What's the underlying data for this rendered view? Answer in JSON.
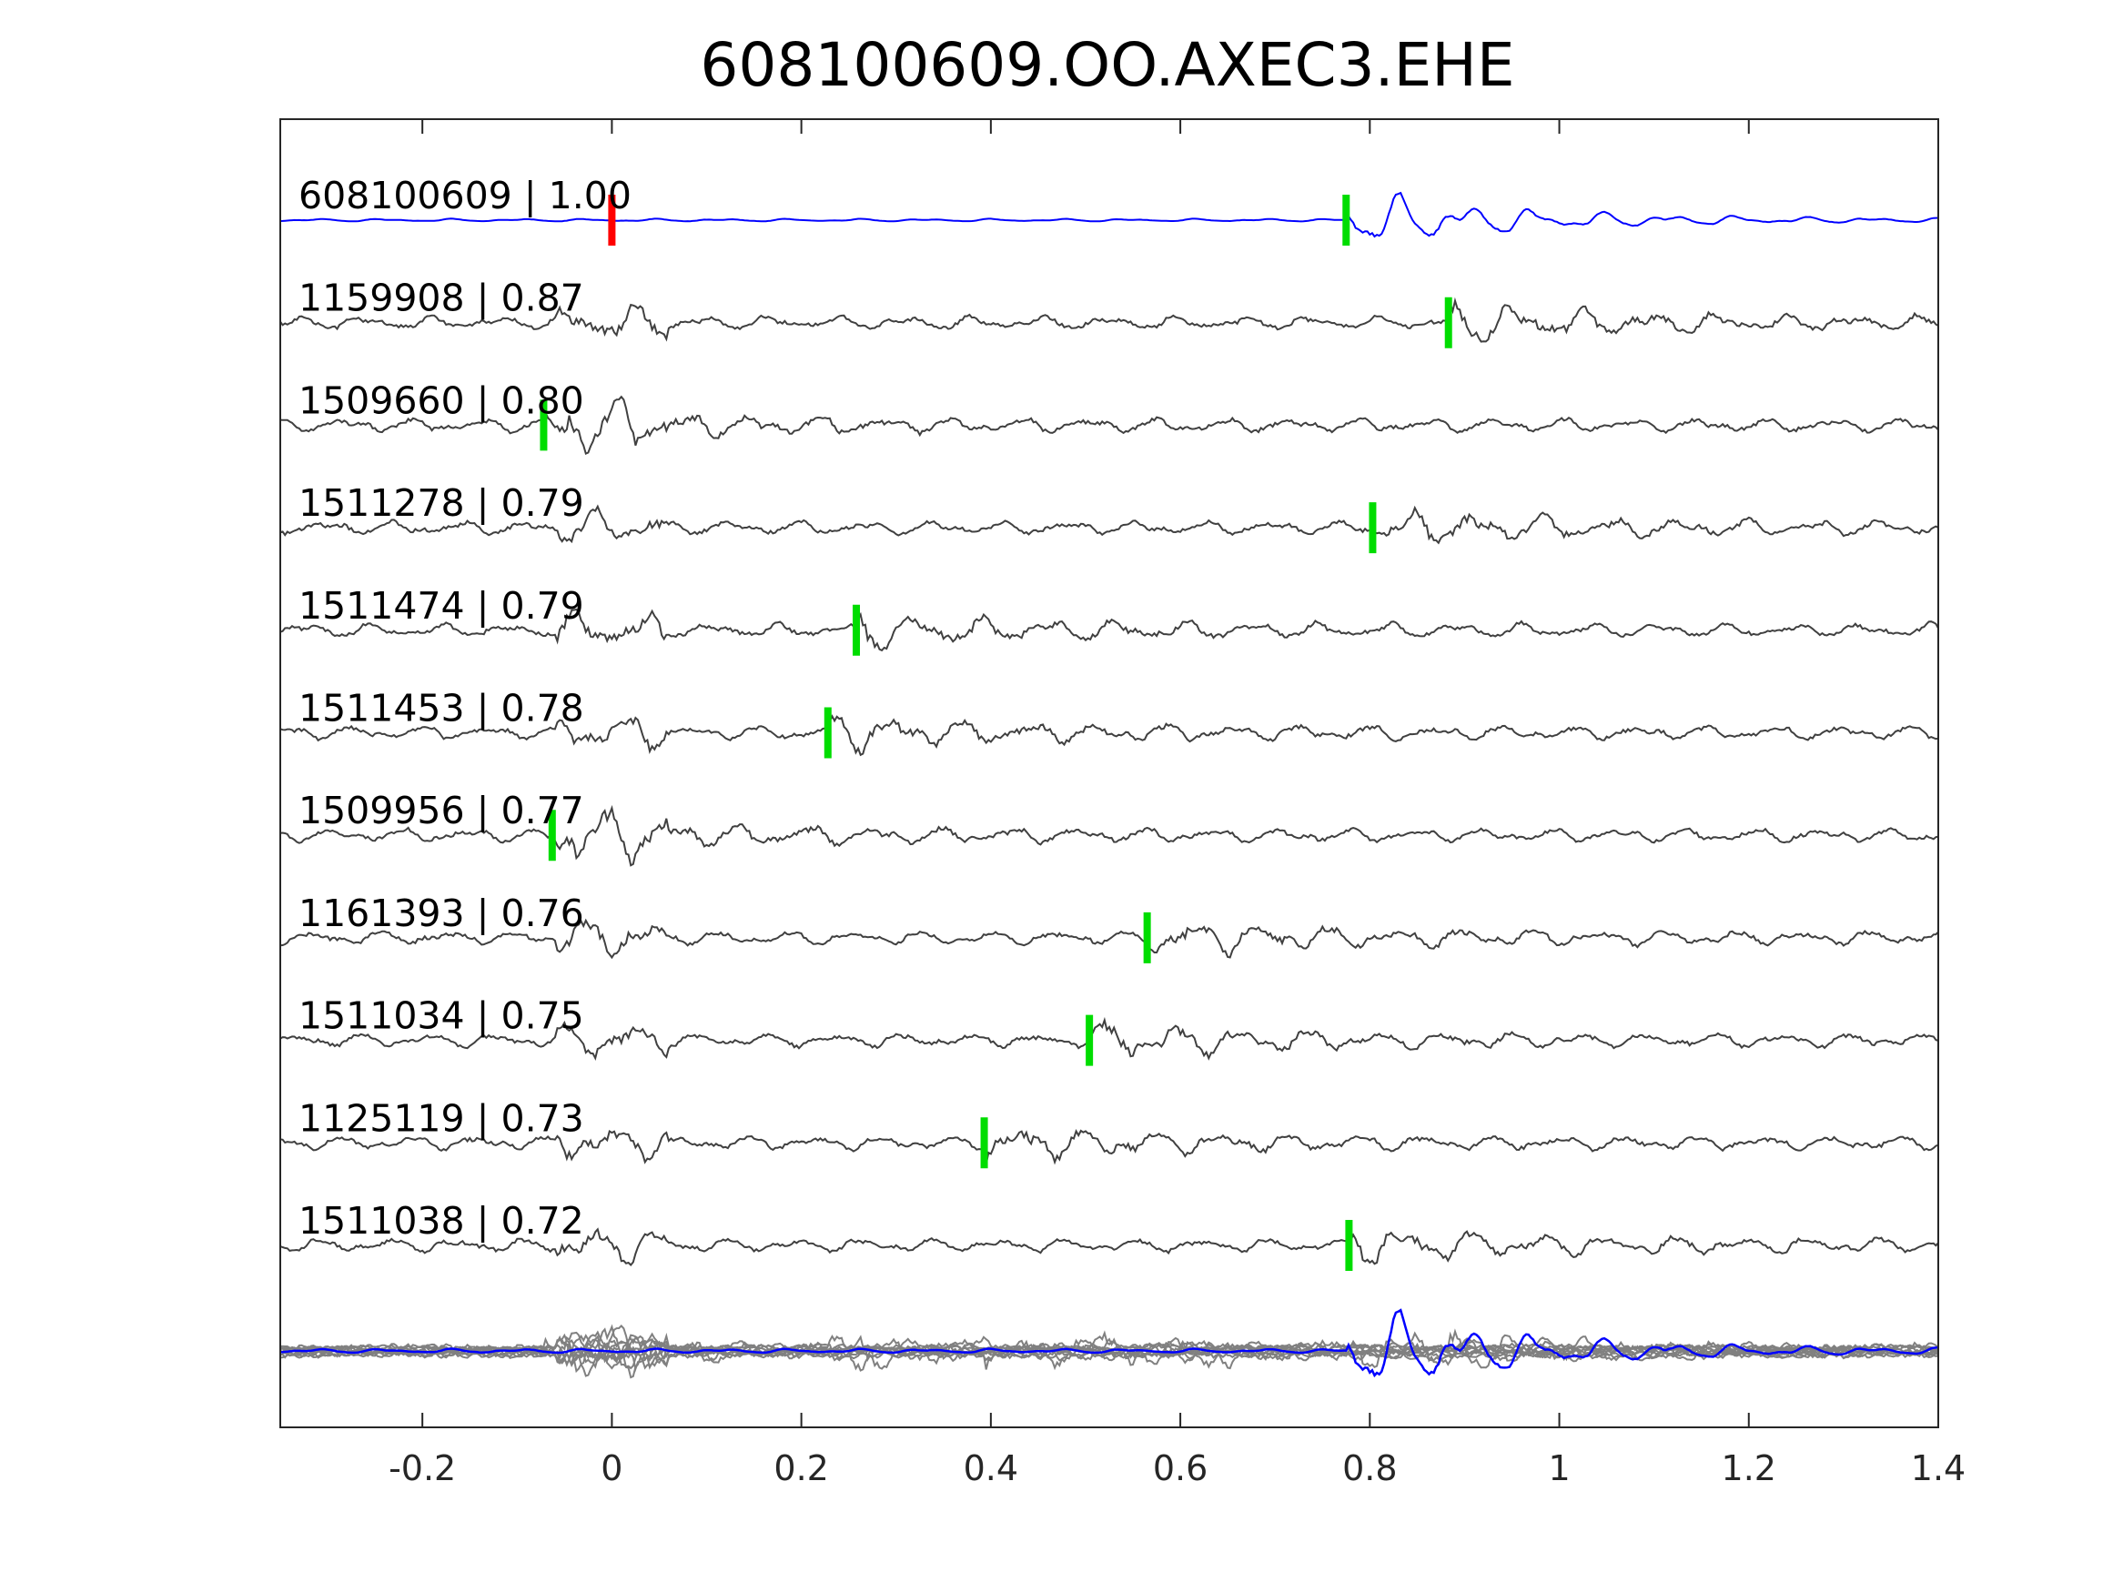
{
  "chart_data": {
    "type": "line",
    "title": "608100609.OO.AXEC3.EHE",
    "xlabel": "",
    "ylabel": "",
    "xlim": [
      -0.35,
      1.4
    ],
    "x_ticks": [
      -0.2,
      0,
      0.2,
      0.4,
      0.6,
      0.8,
      1,
      1.2,
      1.4
    ],
    "x_tick_labels": [
      "-0.2",
      "0",
      "0.2",
      "0.4",
      "0.6",
      "0.8",
      "1",
      "1.2",
      "1.4"
    ],
    "grid": false,
    "legend": "none",
    "colors": {
      "template": "#0000ff",
      "matched": "#404040",
      "stack": "#808080",
      "origin_marker": "#ff0000",
      "pick_marker": "#00dd00",
      "axes": "#262626"
    },
    "reference_origin_time": 0.0,
    "series": [
      {
        "label": "608100609 | 1.00",
        "pick_time": 0.775,
        "role": "template"
      },
      {
        "label": "1159908 | 0.87",
        "pick_time": 0.883,
        "role": "match"
      },
      {
        "label": "1509660 | 0.80",
        "pick_time": -0.072,
        "role": "match"
      },
      {
        "label": "1511278 | 0.79",
        "pick_time": 0.803,
        "role": "match"
      },
      {
        "label": "1511474 | 0.79",
        "pick_time": 0.258,
        "role": "match"
      },
      {
        "label": "1511453 | 0.78",
        "pick_time": 0.228,
        "role": "match"
      },
      {
        "label": "1509956 | 0.77",
        "pick_time": -0.063,
        "role": "match"
      },
      {
        "label": "1161393 | 0.76",
        "pick_time": 0.565,
        "role": "match"
      },
      {
        "label": "1511034 | 0.75",
        "pick_time": 0.504,
        "role": "match"
      },
      {
        "label": "1125119 | 0.73",
        "pick_time": 0.393,
        "role": "match"
      },
      {
        "label": "1511038 | 0.72",
        "pick_time": 0.778,
        "role": "match"
      }
    ]
  }
}
